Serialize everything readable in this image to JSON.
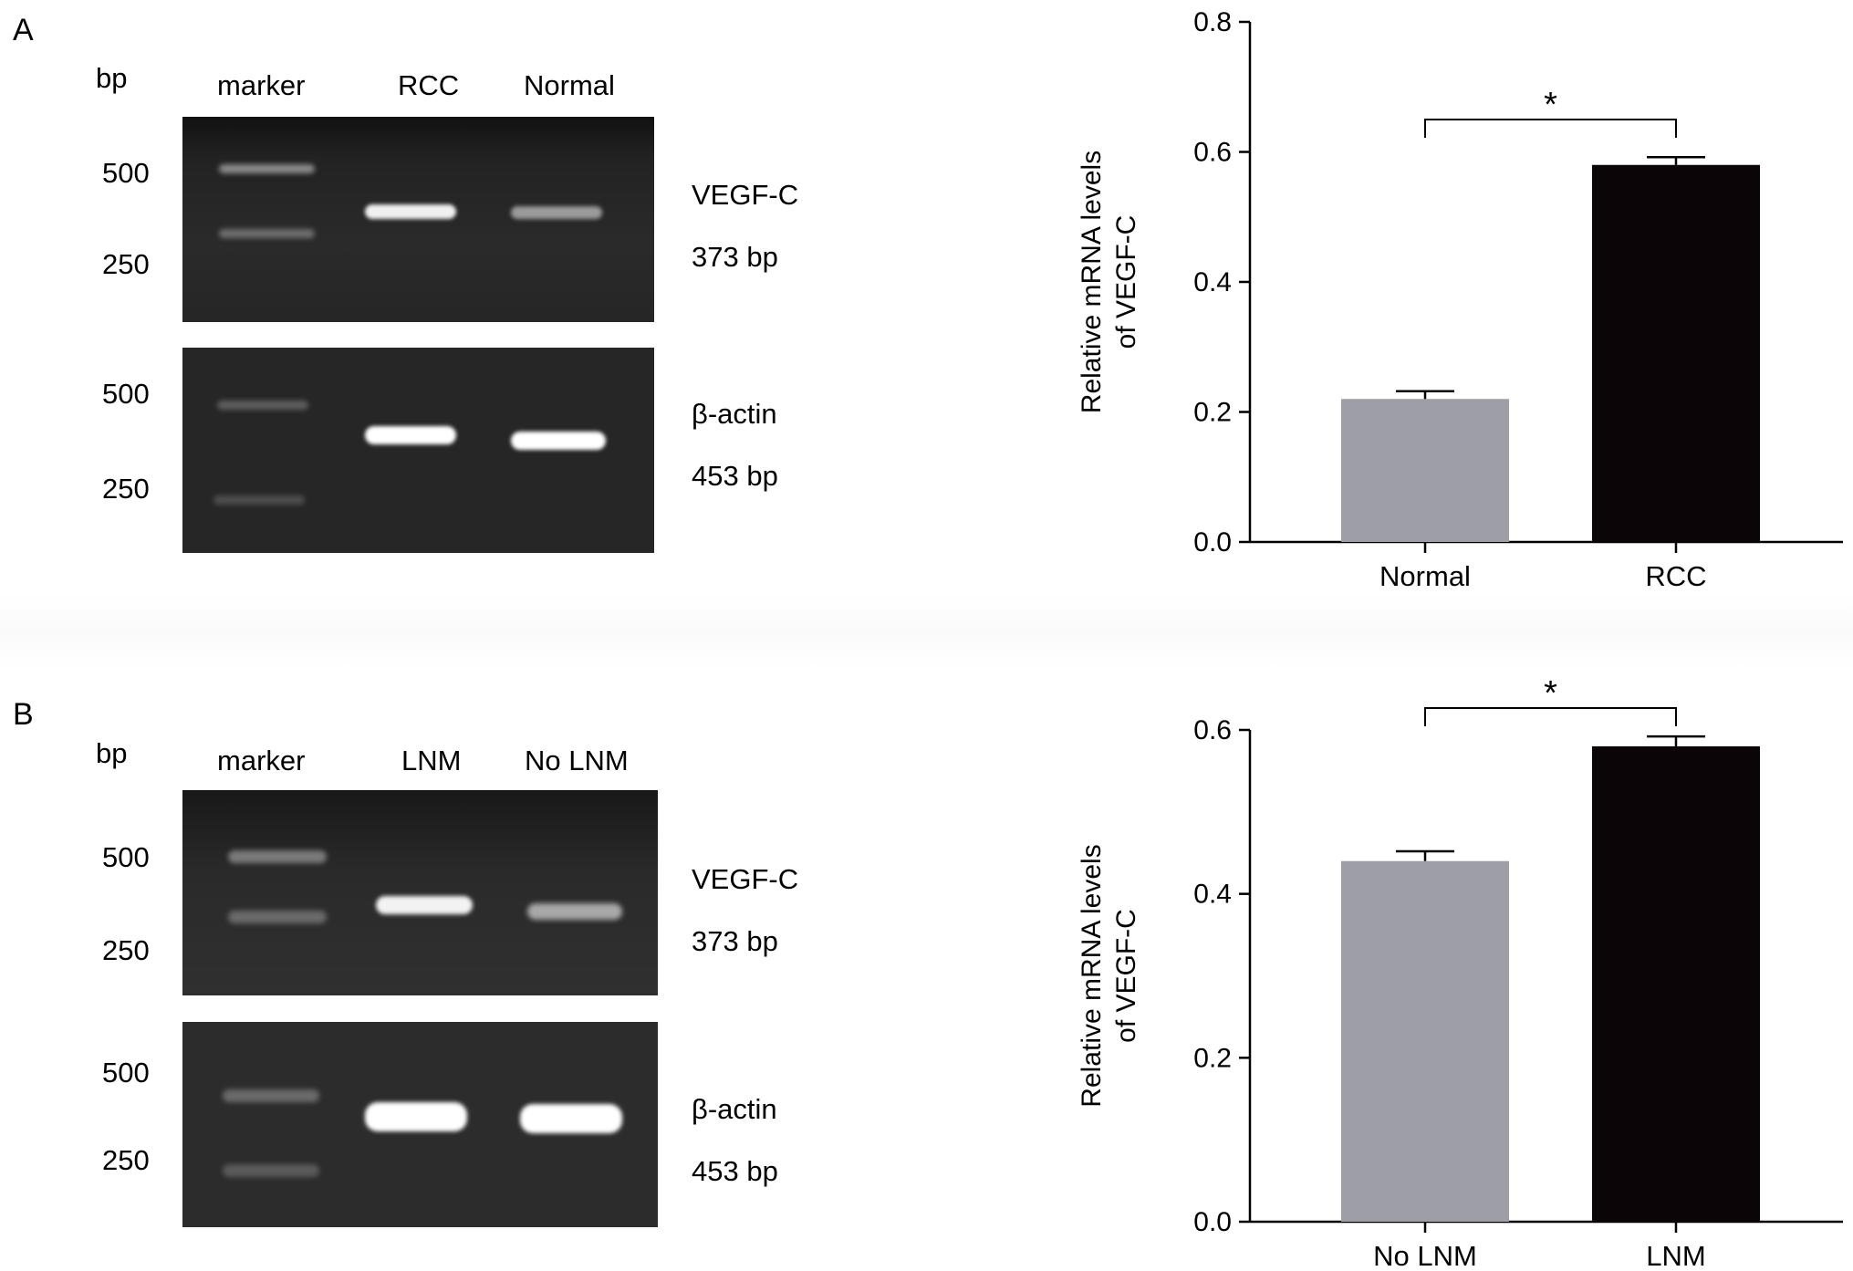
{
  "panelA": {
    "letter": "A",
    "gel": {
      "unit": "bp",
      "lanes": [
        "marker",
        "RCC",
        "Normal"
      ],
      "top": {
        "markers": [
          "500",
          "250"
        ],
        "gene": "VEGF-C",
        "size": "373 bp"
      },
      "bottom": {
        "markers": [
          "500",
          "250"
        ],
        "gene": "β-actin",
        "size": "453 bp"
      }
    }
  },
  "panelB": {
    "letter": "B",
    "gel": {
      "unit": "bp",
      "lanes": [
        "marker",
        "LNM",
        "No LNM"
      ],
      "top": {
        "markers": [
          "500",
          "250"
        ],
        "gene": "VEGF-C",
        "size": "373 bp"
      },
      "bottom": {
        "markers": [
          "500",
          "250"
        ],
        "gene": "β-actin",
        "size": "453 bp"
      }
    }
  },
  "chart_data": [
    {
      "type": "bar",
      "panel": "A",
      "categories": [
        "Normal",
        "RCC"
      ],
      "values": [
        0.22,
        0.58
      ],
      "errors": [
        0.012,
        0.012
      ],
      "colors": [
        "#9e9ea6",
        "#0b0508"
      ],
      "ylabel_lines": [
        "Relative mRNA levels",
        "of VEGF-C"
      ],
      "ylim": [
        0,
        0.8
      ],
      "yticks": [
        0.0,
        0.2,
        0.4,
        0.6,
        0.8
      ],
      "ytick_labels": [
        "0.0",
        "0.2",
        "0.4",
        "0.6",
        "0.8"
      ],
      "significance": {
        "between": [
          "Normal",
          "RCC"
        ],
        "label": "*"
      },
      "grid": false
    },
    {
      "type": "bar",
      "panel": "B",
      "categories": [
        "No LNM",
        "LNM"
      ],
      "values": [
        0.44,
        0.58
      ],
      "errors": [
        0.012,
        0.012
      ],
      "colors": [
        "#9e9ea6",
        "#0b0508"
      ],
      "ylabel_lines": [
        "Relative mRNA levels",
        "of VEGF-C"
      ],
      "ylim": [
        0,
        0.6
      ],
      "yticks": [
        0.0,
        0.2,
        0.4,
        0.6
      ],
      "ytick_labels": [
        "0.0",
        "0.2",
        "0.4",
        "0.6"
      ],
      "significance": {
        "between": [
          "No LNM",
          "LNM"
        ],
        "label": "*"
      },
      "grid": false
    }
  ]
}
